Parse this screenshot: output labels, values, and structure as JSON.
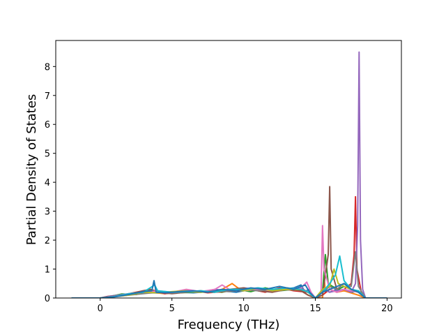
{
  "chart_data": {
    "type": "line",
    "title": "",
    "xlabel": "Frequency (THz)",
    "ylabel": "Partial Density of States",
    "xlim": [
      -3.1,
      21.0
    ],
    "ylim": [
      0,
      8.9
    ],
    "xticks": [
      0,
      5,
      10,
      15,
      20
    ],
    "yticks": [
      0,
      1,
      2,
      3,
      4,
      5,
      6,
      7,
      8
    ],
    "grid": false,
    "legend": "none",
    "series": [
      {
        "color": "#1f77b4",
        "x": [
          -2.0,
          0.0,
          0.5,
          1.5,
          2.5,
          3.5,
          4.5,
          5.5,
          6.5,
          7.5,
          8.5,
          9.5,
          10.5,
          11.5,
          12.5,
          13.5,
          14.0,
          14.3,
          14.5,
          14.8,
          15.0,
          15.6,
          16.0,
          16.5,
          17.0,
          17.5,
          18.0,
          18.5,
          20.0
        ],
        "y": [
          0,
          0,
          0.05,
          0.12,
          0.15,
          0.18,
          0.17,
          0.2,
          0.18,
          0.22,
          0.25,
          0.2,
          0.3,
          0.25,
          0.3,
          0.35,
          0.45,
          0.2,
          0.3,
          0.1,
          0,
          0.3,
          0.2,
          0.3,
          0.25,
          0.2,
          0.25,
          0,
          0
        ]
      },
      {
        "color": "#ff7f0e",
        "x": [
          -2.0,
          0.0,
          0.5,
          1.5,
          2.5,
          3.5,
          4.5,
          5.5,
          6.5,
          7.5,
          8.5,
          9.2,
          9.6,
          10.0,
          11.0,
          12.0,
          13.0,
          14.0,
          14.5,
          15.0,
          15.5,
          15.6,
          15.7,
          16.0,
          16.5,
          17.0,
          18.0,
          18.5,
          20.0
        ],
        "y": [
          0,
          0,
          0.04,
          0.1,
          0.18,
          0.2,
          0.15,
          0.22,
          0.25,
          0.2,
          0.3,
          0.5,
          0.35,
          0.25,
          0.3,
          0.2,
          0.35,
          0.25,
          0.1,
          0,
          0,
          0.8,
          0.2,
          0.3,
          0.2,
          0.25,
          0.1,
          0,
          0
        ]
      },
      {
        "color": "#2ca02c",
        "x": [
          -2.0,
          0.0,
          0.5,
          1.5,
          2.5,
          3.5,
          4.5,
          5.5,
          6.5,
          7.5,
          8.5,
          9.5,
          10.5,
          11.5,
          12.5,
          13.5,
          14.5,
          15.0,
          15.5,
          15.7,
          15.9,
          16.2,
          16.6,
          17.0,
          17.5,
          18.0,
          18.5,
          20.0
        ],
        "y": [
          0,
          0,
          0.03,
          0.14,
          0.12,
          0.25,
          0.2,
          0.18,
          0.2,
          0.25,
          0.2,
          0.3,
          0.22,
          0.35,
          0.25,
          0.3,
          0.2,
          0,
          0.2,
          1.5,
          0.5,
          0.4,
          0.3,
          0.4,
          0.3,
          0.2,
          0,
          0
        ]
      },
      {
        "color": "#d62728",
        "x": [
          -2.0,
          0.0,
          0.5,
          1.5,
          2.5,
          3.5,
          4.5,
          5.5,
          6.5,
          7.5,
          8.5,
          9.5,
          10.5,
          11.5,
          12.5,
          13.5,
          14.5,
          15.0,
          15.5,
          16.0,
          16.5,
          17.0,
          17.5,
          17.7,
          17.8,
          17.9,
          18.2,
          18.5,
          20.0
        ],
        "y": [
          0,
          0,
          0.05,
          0.1,
          0.2,
          0.3,
          0.15,
          0.2,
          0.25,
          0.18,
          0.22,
          0.25,
          0.3,
          0.2,
          0.35,
          0.25,
          0.2,
          0,
          0.1,
          0.3,
          0.2,
          0.3,
          0.5,
          1.5,
          3.5,
          1.0,
          0.2,
          0,
          0
        ]
      },
      {
        "color": "#9467bd",
        "x": [
          -2.0,
          0.0,
          1.0,
          2.0,
          3.0,
          4.0,
          5.0,
          6.0,
          7.0,
          8.0,
          9.0,
          10.0,
          11.0,
          12.0,
          13.0,
          14.0,
          14.5,
          15.0,
          15.6,
          16.0,
          16.5,
          17.0,
          17.5,
          17.8,
          17.95,
          18.05,
          18.15,
          18.3,
          18.5,
          20.0
        ],
        "y": [
          0,
          0,
          0.08,
          0.15,
          0.2,
          0.22,
          0.2,
          0.25,
          0.2,
          0.3,
          0.25,
          0.35,
          0.3,
          0.25,
          0.3,
          0.35,
          0.2,
          0,
          0.3,
          0.2,
          0.25,
          0.3,
          0.2,
          0.5,
          2.5,
          8.5,
          2.0,
          0.3,
          0,
          0
        ]
      },
      {
        "color": "#8c564b",
        "x": [
          -2.0,
          0.0,
          1.0,
          2.0,
          3.0,
          3.5,
          4.0,
          5.0,
          6.0,
          7.0,
          8.0,
          9.0,
          10.0,
          11.0,
          12.0,
          13.0,
          14.0,
          14.5,
          15.0,
          15.5,
          15.9,
          16.0,
          16.1,
          16.5,
          17.0,
          17.5,
          18.0,
          18.5,
          20.0
        ],
        "y": [
          0,
          0,
          0.06,
          0.12,
          0.25,
          0.3,
          0.2,
          0.15,
          0.2,
          0.25,
          0.2,
          0.3,
          0.35,
          0.25,
          0.2,
          0.3,
          0.25,
          0.1,
          0,
          0.1,
          1.5,
          3.85,
          1.0,
          0.3,
          0.5,
          0.3,
          0.2,
          0,
          0
        ]
      },
      {
        "color": "#e377c2",
        "x": [
          -2.0,
          0.0,
          1.0,
          2.0,
          3.0,
          4.0,
          5.0,
          6.0,
          7.0,
          8.0,
          8.5,
          9.0,
          10.0,
          11.0,
          12.0,
          13.0,
          14.0,
          14.4,
          14.7,
          15.0,
          15.4,
          15.5,
          15.6,
          16.0,
          16.5,
          17.0,
          17.5,
          18.0,
          18.5,
          20.0
        ],
        "y": [
          0,
          0,
          0.05,
          0.15,
          0.18,
          0.25,
          0.2,
          0.3,
          0.22,
          0.3,
          0.45,
          0.3,
          0.25,
          0.3,
          0.25,
          0.3,
          0.35,
          0.55,
          0.2,
          0,
          0.2,
          2.5,
          1.0,
          0.3,
          0.2,
          0.3,
          0.25,
          0.2,
          0,
          0
        ]
      },
      {
        "color": "#7f7f7f",
        "x": [
          -2.0,
          0.0,
          1.0,
          2.0,
          3.0,
          4.0,
          5.0,
          6.0,
          7.0,
          8.0,
          9.0,
          10.0,
          11.0,
          12.0,
          13.0,
          14.0,
          14.5,
          15.0,
          15.5,
          16.0,
          16.5,
          17.0,
          17.5,
          17.8,
          18.0,
          18.5,
          20.0
        ],
        "y": [
          0,
          0,
          0.04,
          0.1,
          0.15,
          0.2,
          0.18,
          0.22,
          0.2,
          0.25,
          0.22,
          0.3,
          0.25,
          0.3,
          0.28,
          0.3,
          0.2,
          0,
          0.2,
          0.4,
          0.3,
          0.5,
          0.4,
          1.6,
          0.4,
          0,
          0
        ]
      },
      {
        "color": "#bcbd22",
        "x": [
          -2.0,
          0.0,
          1.0,
          2.0,
          3.0,
          4.0,
          5.0,
          6.0,
          7.0,
          8.0,
          9.0,
          10.0,
          11.0,
          12.0,
          13.0,
          14.0,
          14.5,
          15.0,
          15.5,
          16.0,
          16.3,
          16.6,
          17.0,
          17.5,
          18.0,
          18.5,
          20.0
        ],
        "y": [
          0,
          0,
          0.05,
          0.1,
          0.2,
          0.18,
          0.22,
          0.25,
          0.2,
          0.22,
          0.3,
          0.25,
          0.35,
          0.25,
          0.3,
          0.3,
          0.2,
          0,
          0.3,
          0.4,
          1.0,
          0.5,
          0.4,
          0.3,
          0.2,
          0,
          0
        ]
      },
      {
        "color": "#17becf",
        "x": [
          -2.0,
          0.0,
          1.0,
          2.0,
          3.0,
          3.8,
          4.0,
          5.0,
          6.0,
          7.0,
          8.0,
          9.0,
          10.0,
          11.0,
          12.0,
          13.0,
          14.0,
          14.5,
          15.0,
          15.5,
          16.0,
          16.4,
          16.7,
          17.0,
          17.5,
          18.0,
          18.5,
          20.0
        ],
        "y": [
          0,
          0,
          0.05,
          0.15,
          0.2,
          0.45,
          0.25,
          0.2,
          0.22,
          0.25,
          0.2,
          0.3,
          0.3,
          0.35,
          0.3,
          0.35,
          0.3,
          0.2,
          0,
          0.2,
          0.5,
          0.8,
          1.45,
          0.6,
          0.3,
          0.25,
          0,
          0
        ]
      },
      {
        "color": "#1f77b4",
        "x": [
          -2.0,
          0.0,
          1.0,
          2.0,
          3.0,
          3.6,
          3.75,
          3.9,
          4.5,
          5.5,
          6.5,
          7.5,
          8.5,
          9.5,
          10.5,
          11.5,
          12.5,
          13.5,
          14.3,
          14.6,
          15.0,
          15.5,
          16.0,
          16.5,
          17.0,
          17.5,
          18.0,
          18.5,
          20.0
        ],
        "y": [
          0,
          0,
          0.04,
          0.12,
          0.22,
          0.25,
          0.6,
          0.2,
          0.18,
          0.22,
          0.25,
          0.2,
          0.3,
          0.25,
          0.35,
          0.3,
          0.4,
          0.3,
          0.45,
          0.2,
          0,
          0.2,
          0.3,
          0.4,
          0.5,
          0.3,
          0.2,
          0,
          0
        ]
      }
    ]
  }
}
